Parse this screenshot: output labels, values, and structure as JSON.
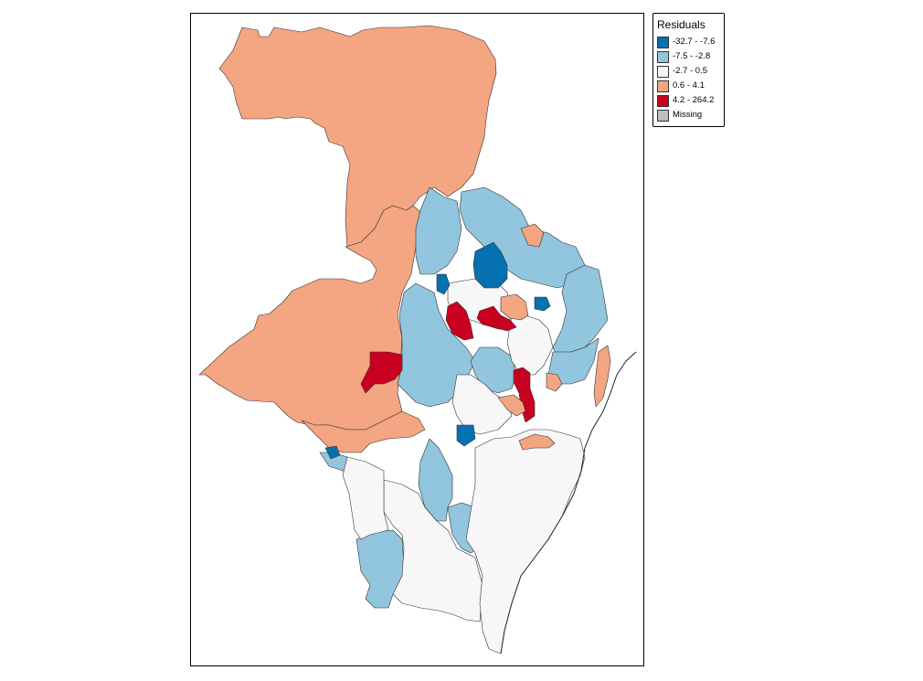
{
  "map": {
    "legend": {
      "title": "Residuals",
      "items": [
        {
          "label": "-32.7 - -7.6",
          "color": "#0571b0"
        },
        {
          "label": "-7.5 - -2.8",
          "color": "#92c5de"
        },
        {
          "label": "-2.7 - 0.5",
          "color": "#f7f7f7"
        },
        {
          "label": "0.6 - 4.1",
          "color": "#f4a582"
        },
        {
          "label": "4.2 - 264.2",
          "color": "#ca0020"
        },
        {
          "label": "Missing",
          "color": "#bfbfbf"
        }
      ]
    },
    "region_classes": {
      "north-west-large": 3,
      "west-large": 3,
      "west-south": 3,
      "central-west-blue": 1,
      "north-central-blue": 1,
      "north-central-blue-2": 1,
      "north-east-blue": 1,
      "east-blue": 1,
      "central-blue": 1,
      "south-west-blue": 1,
      "south-central-blue": 1,
      "south-blue-small": 1,
      "south-large-white": 2,
      "south-east-white": 2,
      "central-white-1": 2,
      "central-white-2": 2,
      "central-white-3": 2,
      "south-west-white": 2,
      "dark-blue-north": 0,
      "dark-blue-west": 0,
      "dark-blue-central": 0,
      "dark-blue-south": 0,
      "dark-blue-southwest": 0,
      "red-west": 4,
      "red-central-1": 4,
      "red-central-2": 4,
      "red-east": 4,
      "orange-east-1": 3,
      "orange-east-2": 3,
      "orange-central": 3,
      "orange-south": 3,
      "orange-coast": 3,
      "orange-north-small": 3
    }
  }
}
